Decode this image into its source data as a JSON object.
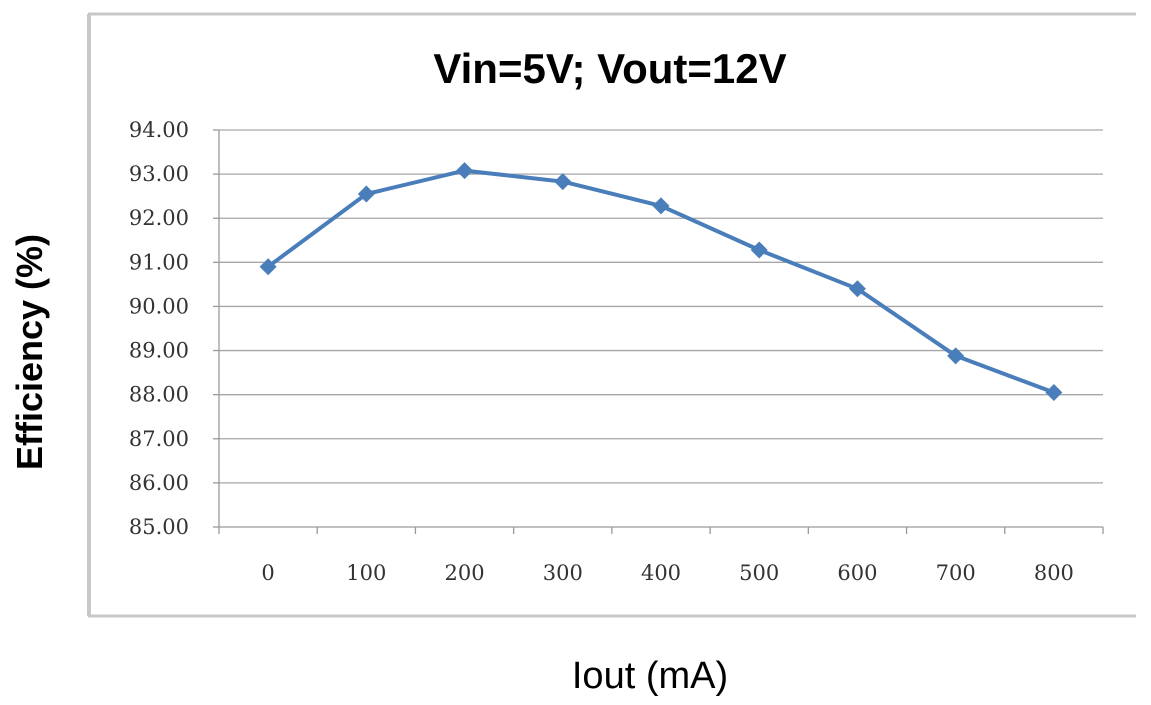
{
  "chart_data": {
    "type": "line",
    "title": "Vin=5V; Vout=12V",
    "xlabel": "Iout (mA)",
    "ylabel": "Efficiency (%)",
    "categories": [
      "0",
      "100",
      "200",
      "300",
      "400",
      "500",
      "600",
      "700",
      "800"
    ],
    "series": [
      {
        "values": [
          90.9,
          92.55,
          93.08,
          92.83,
          92.28,
          91.28,
          90.4,
          88.88,
          88.05
        ]
      }
    ],
    "y_ticks": [
      "94.00",
      "93.00",
      "92.00",
      "91.00",
      "90.00",
      "89.00",
      "88.00",
      "87.00",
      "86.00",
      "85.00"
    ],
    "ylim": [
      85,
      94
    ],
    "grid": true,
    "legend": "none",
    "series_color": "#4a7ebb"
  }
}
